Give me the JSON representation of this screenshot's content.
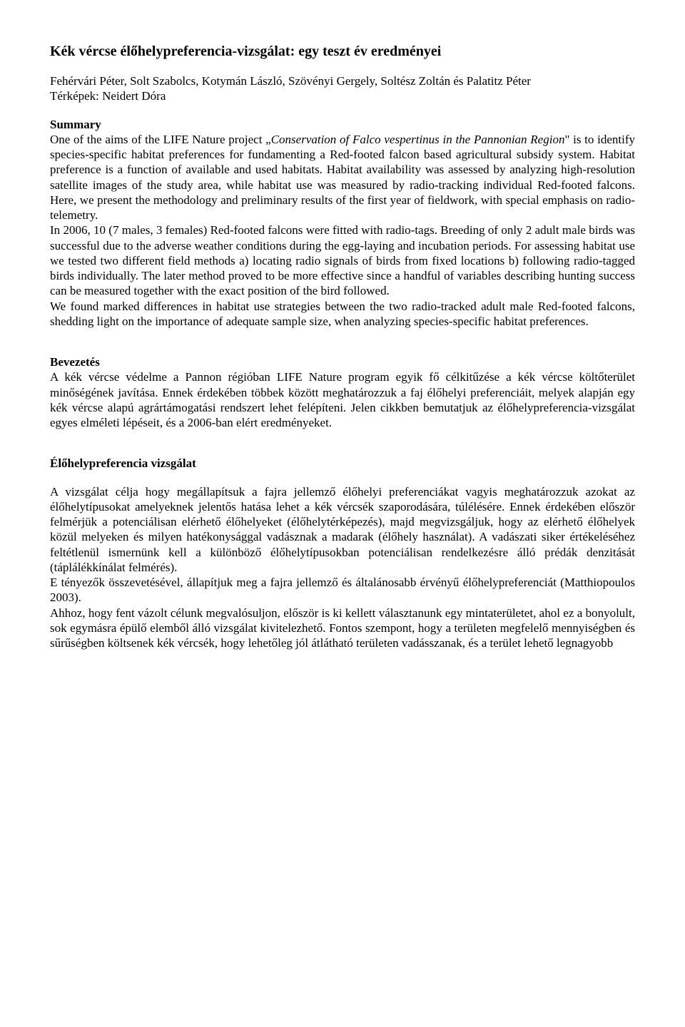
{
  "title": "Kék vércse élőhelypreferencia-vizsgálat: egy teszt év eredményei",
  "authors": "Fehérvári Péter, Solt Szabolcs, Kotymán László, Szövényi Gergely, Soltész Zoltán és Palatitz Péter",
  "maps": "Térképek: Neidert Dóra",
  "summary_heading": "Summary",
  "summary_p1a": "One of the aims of the LIFE Nature project „",
  "summary_p1b": "Conservation of Falco vespertinus in the Pannonian Region",
  "summary_p1c": "\" is to identify species-specific habitat preferences for fundamenting a Red-footed falcon based agricultural subsidy system. Habitat preference is a function of available and used habitats. Habitat availability was assessed by analyzing high-resolution satellite images of the study area, while habitat use was measured by radio-tracking individual Red-footed falcons. Here, we present the methodology and preliminary results of the first year of fieldwork, with special emphasis on radio-telemetry.",
  "summary_p2": "In 2006, 10 (7 males, 3 females) Red-footed falcons were fitted with radio-tags. Breeding of only 2 adult male birds was successful due to the adverse weather conditions during the egg-laying and incubation periods. For assessing habitat use we tested two different field methods a) locating radio signals of birds from fixed locations b) following radio-tagged birds individually. The later method proved to be more effective since a handful of variables describing hunting success can be measured together with the exact position of the bird followed.",
  "summary_p3": "We found marked differences in habitat use strategies between the two radio-tracked adult male Red-footed falcons, shedding light on the importance of adequate sample size, when analyzing species-specific habitat preferences.",
  "intro_heading": "Bevezetés",
  "intro_p1": "A kék vércse védelme a Pannon régióban LIFE Nature program egyik fő célkitűzése a kék vércse költőterület minőségének javítása. Ennek érdekében többek között meghatározzuk a faj élőhelyi preferenciáit, melyek alapján egy kék vércse alapú agrártámogatási rendszert lehet felépíteni. Jelen cikkben bemutatjuk az élőhelypreferencia-vizsgálat egyes elméleti lépéseit, és a 2006-ban elért eredményeket.",
  "habitat_heading": "Élőhelypreferencia vizsgálat",
  "habitat_p1": "A vizsgálat célja hogy megállapítsuk a fajra jellemző élőhelyi preferenciákat vagyis meghatározzuk azokat az élőhelytípusokat amelyeknek jelentős hatása lehet a kék vércsék szaporodására, túlélésére. Ennek érdekében először felmérjük a potenciálisan elérhető élőhelyeket (élőhelytérképezés), majd megvizsgáljuk, hogy az elérhető élőhelyek közül melyeken és milyen hatékonysággal vadásznak a madarak (élőhely használat). A vadászati siker értékeléséhez feltétlenül ismernünk kell a különböző élőhelytípusokban potenciálisan rendelkezésre álló prédák denzitását (táplálékkínálat felmérés).",
  "habitat_p2": "E tényezők összevetésével, állapítjuk meg a fajra jellemző és általánosabb érvényű élőhelypreferenciát (Matthiopoulos 2003).",
  "habitat_p3": "Ahhoz, hogy fent vázolt célunk megvalósuljon, először is ki kellett választanunk egy mintaterületet, ahol ez a bonyolult, sok egymásra épülő elemből álló vizsgálat kivitelezhető. Fontos szempont, hogy a területen megfelelő mennyiségben és sűrűségben költsenek kék vércsék, hogy lehetőleg jól átlátható területen vadásszanak, és a terület lehető legnagyobb"
}
